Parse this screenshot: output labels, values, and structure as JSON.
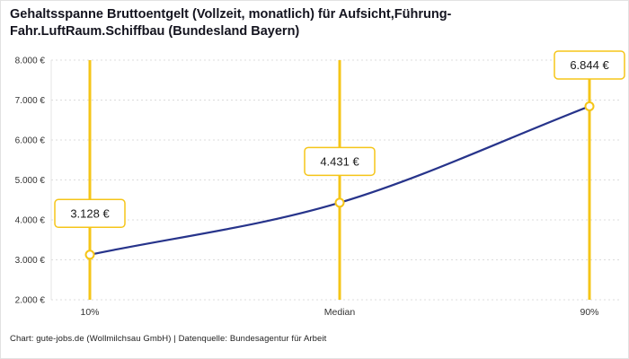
{
  "header": {
    "title_lines": [
      "Gehaltsspanne Bruttoentgelt (Vollzeit, monatlich) für Aufsicht,Führung-",
      "Fahr.LuftRaum.Schiffbau (Bundesland Bayern)"
    ]
  },
  "footer": {
    "text": "Chart: gute-jobs.de (Wollmilchsau GmbH) | Datenquelle: Bundesagentur für Arbeit"
  },
  "chart_data": {
    "type": "line",
    "title": "Gehaltsspanne Bruttoentgelt (Vollzeit, monatlich) für Aufsicht,Führung-Fahr.LuftRaum.Schiffbau (Bundesland Bayern)",
    "categories": [
      "10%",
      "Median",
      "90%"
    ],
    "values": [
      3128,
      4431,
      6844
    ],
    "value_labels": [
      "3.128 €",
      "4.431 €",
      "6.844 €"
    ],
    "ylim": [
      2000,
      8000
    ],
    "yticks": [
      2000,
      3000,
      4000,
      5000,
      6000,
      7000,
      8000
    ],
    "ytick_labels": [
      "2.000 €",
      "3.000 €",
      "4.000 €",
      "5.000 €",
      "6.000 €",
      "7.000 €",
      "8.000 €"
    ],
    "grid": true,
    "legend": "none",
    "colors": {
      "line": "#27348B",
      "accent": "#F5C518",
      "grid": "#DCDCDC",
      "text": "#333333"
    }
  }
}
